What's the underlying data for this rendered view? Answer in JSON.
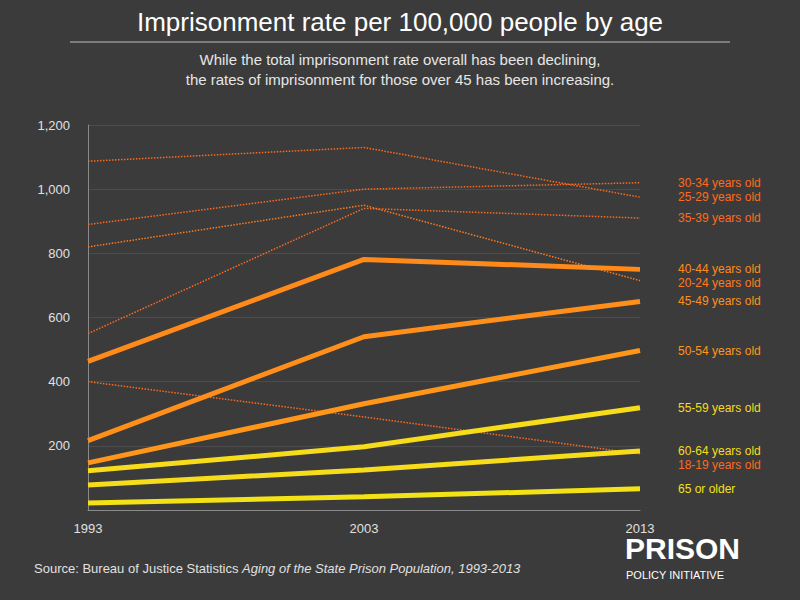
{
  "chart_data": {
    "type": "line",
    "title": "Imprisonment rate per 100,000 people by age",
    "subtitle": [
      "While the total imprisonment rate overall has been declining,",
      "the rates of imprisonment for those over 45 has been increasing."
    ],
    "source": [
      "Source: Bureau of Justice Statistics",
      "Aging of the State Prison Population, 1993-2013"
    ],
    "logo": [
      "PRISON",
      "POLICY INITIATIVE"
    ],
    "categories": [
      "1993",
      "2003",
      "2013"
    ],
    "ylim": [
      0,
      1200
    ],
    "yticks": [
      200,
      400,
      600,
      800,
      {
        "value": 1000,
        "label": "1,000"
      },
      {
        "value": 1200,
        "label": "1,200"
      }
    ],
    "grid": true,
    "series": [
      {
        "name": "30-34 years old",
        "color": "#ff6a1c",
        "line_style": "dotted",
        "values": [
          890,
          1000,
          1020
        ]
      },
      {
        "name": "25-29 years old",
        "color": "#ff6a1c",
        "line_style": "dotted",
        "values": [
          1087,
          1130,
          975
        ]
      },
      {
        "name": "35-39 years old",
        "color": "#ff6a1c",
        "line_style": "dotted",
        "values": [
          550,
          940,
          910
        ]
      },
      {
        "name": "40-44 years old",
        "color": "#ff8a1a",
        "line_style": "solid",
        "values": [
          463,
          781,
          750
        ]
      },
      {
        "name": "20-24 years old",
        "color": "#ff7a1c",
        "line_style": "dotted",
        "values": [
          820,
          950,
          715
        ]
      },
      {
        "name": "45-49 years old",
        "color": "#ff8f1a",
        "line_style": "solid",
        "values": [
          216,
          540,
          650
        ]
      },
      {
        "name": "50-54 years old",
        "color": "#ff961a",
        "line_style": "solid",
        "values": [
          147,
          331,
          497
        ]
      },
      {
        "name": "55-59 years old",
        "color": "#f6dc1a",
        "line_style": "solid",
        "values": [
          122,
          197,
          319
        ]
      },
      {
        "name": "60-64 years old",
        "color": "#f6dc1a",
        "line_style": "solid",
        "values": [
          78,
          125,
          184
        ]
      },
      {
        "name": "18-19 years old",
        "color": "#ff6a1c",
        "line_style": "dotted",
        "values": [
          400,
          290,
          175
        ]
      },
      {
        "name": "65 or older",
        "color": "#f2e216",
        "line_style": "solid",
        "values": [
          22,
          41,
          66
        ]
      }
    ]
  }
}
